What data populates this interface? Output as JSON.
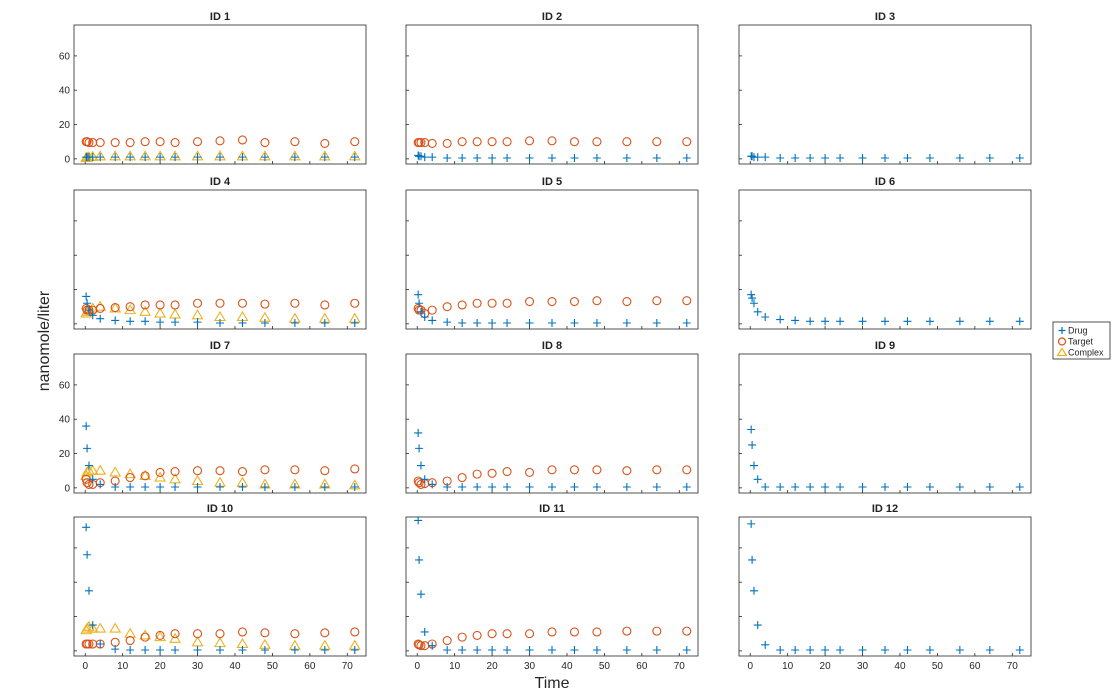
{
  "figure": {
    "ylabel": "nanomole/liter",
    "xlabel": "Time",
    "legend": [
      {
        "name": "Drug",
        "marker": "plus",
        "color": "#0072BD"
      },
      {
        "name": "Target",
        "marker": "circle",
        "color": "#D95319"
      },
      {
        "name": "Complex",
        "marker": "triangle",
        "color": "#EDB120"
      }
    ]
  },
  "chart_data": {
    "type": "scatter",
    "layout": "4x3 small multiples",
    "xlim": [
      -3,
      75
    ],
    "ylim": [
      -3,
      78
    ],
    "xticks": [
      0,
      10,
      20,
      30,
      40,
      50,
      60,
      70
    ],
    "yticks": [
      0,
      20,
      40,
      60
    ],
    "x": [
      0.25,
      0.5,
      1,
      2,
      4,
      8,
      12,
      16,
      20,
      24,
      30,
      36,
      42,
      48,
      56,
      64,
      72
    ],
    "panels": [
      {
        "title": "ID 1",
        "drug": [
          1,
          1,
          1,
          1,
          1,
          1,
          1,
          1,
          1,
          1,
          1,
          1,
          1,
          1,
          1,
          1,
          1
        ],
        "target": [
          10,
          10,
          9.5,
          9.5,
          9.5,
          9.5,
          9.5,
          10,
          10,
          9.5,
          10,
          10.5,
          11,
          9.5,
          10,
          9,
          10
        ],
        "complex": [
          0.5,
          0.8,
          1,
          1.2,
          1.5,
          1.5,
          1.5,
          1.5,
          1.5,
          1.5,
          1.5,
          1.5,
          1.5,
          1.5,
          1.5,
          1.5,
          1.5
        ]
      },
      {
        "title": "ID 2",
        "drug": [
          2,
          1.5,
          1.5,
          1,
          1,
          0.5,
          0.5,
          0.5,
          0.5,
          0.5,
          0.5,
          0.5,
          0.5,
          0.5,
          0.5,
          0.5,
          0.5
        ],
        "target": [
          9.5,
          9.5,
          9.5,
          9.5,
          9,
          9,
          10,
          10,
          10,
          10,
          10.5,
          10.5,
          10,
          10,
          10,
          10,
          10
        ],
        "complex": []
      },
      {
        "title": "ID 3",
        "drug": [
          1.5,
          1.5,
          1,
          1,
          1,
          0.5,
          0.5,
          0.5,
          0.5,
          0.5,
          0.5,
          0.5,
          0.5,
          0.5,
          0.5,
          0.5,
          0.5
        ],
        "target": [],
        "complex": []
      },
      {
        "title": "ID 4",
        "drug": [
          16,
          12,
          8,
          5,
          3,
          2,
          1.5,
          1.5,
          1,
          1,
          1,
          0.5,
          0.5,
          0.5,
          0.5,
          0.5,
          0.5
        ],
        "target": [
          9,
          8,
          8,
          8,
          9,
          9.5,
          10,
          11,
          11,
          11,
          12,
          12,
          12,
          11.5,
          12,
          11,
          12
        ],
        "complex": [
          6,
          7,
          8,
          9,
          10,
          9,
          8,
          7,
          6,
          5.5,
          5,
          4,
          4,
          3.5,
          3,
          3,
          3
        ]
      },
      {
        "title": "ID 5",
        "drug": [
          17,
          12,
          7,
          4,
          2,
          1,
          0.5,
          0.5,
          0.5,
          0.5,
          0.5,
          0.5,
          0.5,
          0.5,
          0.5,
          0.5,
          0.5
        ],
        "target": [
          9,
          8,
          8,
          6,
          8,
          10,
          11,
          12,
          12,
          12,
          13,
          13,
          13,
          13.5,
          13,
          13.5,
          13.5
        ],
        "complex": []
      },
      {
        "title": "ID 6",
        "drug": [
          17,
          15,
          12,
          7,
          4,
          2.5,
          2,
          1.5,
          1.5,
          1.5,
          1.5,
          1.5,
          1.5,
          1.5,
          1.5,
          1.5,
          1.5
        ],
        "target": [],
        "complex": []
      },
      {
        "title": "ID 7",
        "drug": [
          36,
          23,
          13,
          5,
          2,
          0.5,
          0.5,
          0.5,
          0.5,
          0.5,
          0.5,
          0.5,
          0.5,
          0.5,
          0.5,
          0.5,
          0.5
        ],
        "target": [
          5,
          3,
          2,
          2,
          3,
          4,
          6,
          7,
          9,
          9.5,
          10,
          10,
          9.5,
          10.5,
          10.5,
          10,
          11
        ],
        "complex": [
          7,
          9,
          10,
          10,
          10,
          9,
          8,
          7,
          6,
          5,
          4,
          3,
          3,
          2,
          2,
          2,
          1.5
        ]
      },
      {
        "title": "ID 8",
        "drug": [
          32,
          23,
          13,
          5,
          2,
          0.5,
          0.5,
          0.5,
          0.5,
          0.5,
          0.5,
          0.5,
          0.5,
          0.5,
          0.5,
          0.5,
          0.5
        ],
        "target": [
          4,
          3,
          2,
          2.5,
          3,
          4,
          6,
          8,
          8.5,
          9.5,
          9,
          10.5,
          10.5,
          10.5,
          10,
          10.5,
          10.5
        ],
        "complex": []
      },
      {
        "title": "ID 9",
        "drug": [
          34,
          25,
          13,
          5,
          0.5,
          0.5,
          0.5,
          0.5,
          0.5,
          0.5,
          0.5,
          0.5,
          0.5,
          0.5,
          0.5,
          0.5,
          0.5
        ],
        "target": [],
        "complex": []
      },
      {
        "title": "ID 10",
        "drug": [
          72,
          56,
          35,
          15,
          4,
          1,
          0.5,
          0.5,
          0.5,
          0.5,
          0.5,
          0.5,
          0.5,
          0.5,
          0.5,
          0.5,
          0.5
        ],
        "target": [
          4,
          4,
          4,
          4,
          4,
          5,
          6,
          8,
          9,
          10,
          10,
          10,
          11,
          10.5,
          10,
          10.5,
          11
        ],
        "complex": [
          12,
          13,
          14,
          13,
          13,
          13,
          10,
          9,
          8,
          7,
          5,
          4.5,
          4,
          3.5,
          3,
          3,
          3
        ]
      },
      {
        "title": "ID 11",
        "drug": [
          76,
          53,
          33,
          11,
          3,
          0.5,
          0.5,
          0.5,
          0.5,
          0.5,
          0.5,
          0.5,
          0.5,
          0.5,
          0.5,
          0.5,
          0.5
        ],
        "target": [
          4,
          3.5,
          3,
          3,
          4,
          6,
          8,
          9,
          10,
          10,
          10,
          11,
          11,
          11,
          11.5,
          11.5,
          11.5
        ],
        "complex": []
      },
      {
        "title": "ID 12",
        "drug": [
          74,
          53,
          35,
          15,
          3.5,
          0.5,
          0.5,
          0.5,
          0.5,
          0.5,
          0.5,
          0.5,
          0.5,
          0.5,
          0.5,
          0.5,
          0.5
        ],
        "target": [],
        "complex": []
      }
    ]
  }
}
